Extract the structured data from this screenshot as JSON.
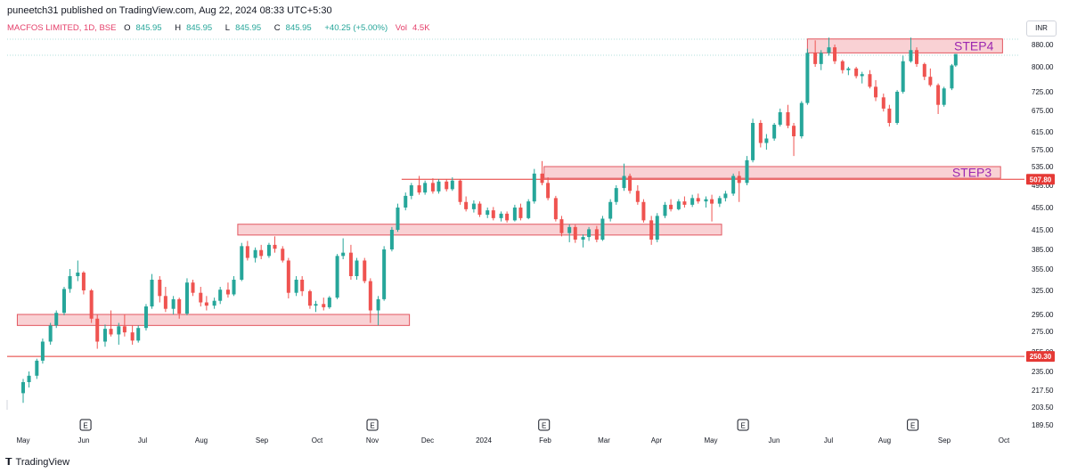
{
  "header": {
    "publisher_line": "puneetch31 published on TradingView.com, Aug 22, 2024 08:33 UTC+5:30",
    "symbol": "MACFOS LIMITED, 1D, BSE",
    "open_label": "O",
    "open": "845.95",
    "high_label": "H",
    "high": "845.95",
    "low_label": "L",
    "low": "845.95",
    "close_label": "C",
    "close": "845.95",
    "change": "+40.25 (+5.00%)",
    "volume_label": "Vol",
    "volume": "4.5K",
    "currency": "INR"
  },
  "footer": {
    "brand": "TradingView"
  },
  "colors": {
    "up": "#26a69a",
    "down": "#ef5350",
    "zone_fill": "#f8c9cd",
    "zone_stroke": "#e2565f",
    "level_line": "#e53935",
    "zone_label": "#9c27b0"
  },
  "chart_data": {
    "type": "candlestick",
    "y_ticks": [
      "880.00",
      "800.00",
      "725.00",
      "675.00",
      "615.00",
      "575.00",
      "535.00",
      "495.00",
      "455.00",
      "415.00",
      "385.00",
      "355.00",
      "325.00",
      "295.00",
      "275.00",
      "255.00",
      "235.00",
      "217.50",
      "203.50",
      "189.50"
    ],
    "x_ticks": [
      "May",
      "Jun",
      "Jul",
      "Aug",
      "Sep",
      "Oct",
      "Nov",
      "Dec",
      "2024",
      "Feb",
      "Mar",
      "Apr",
      "May",
      "Jun",
      "Jul",
      "Aug",
      "Sep",
      "Oct"
    ],
    "price_levels": [
      {
        "value": 507.8,
        "label": "507.80"
      },
      {
        "value": 250.3,
        "label": "250.30"
      }
    ],
    "zones": [
      {
        "label": "",
        "start": "2023-04-28",
        "end": "2023-11-15",
        "low": 282,
        "high": 295
      },
      {
        "label": "",
        "start": "2023-08-19",
        "end": "2024-04-23",
        "low": 407,
        "high": 425
      },
      {
        "label": "STEP3",
        "start": "2024-01-23",
        "end": "2024-09-13",
        "low": 510,
        "high": 535
      },
      {
        "label": "STEP4",
        "start": "2024-06-06",
        "end": "2024-09-14",
        "low": 850,
        "high": 900
      }
    ],
    "earnings_markers": [
      "2023-06-02",
      "2023-10-27",
      "2024-01-23",
      "2024-05-04",
      "2024-07-30"
    ],
    "candles": [
      {
        "date": "2023-05-01",
        "o": 215,
        "h": 228,
        "l": 207,
        "c": 225
      },
      {
        "date": "2023-05-04",
        "o": 225,
        "h": 235,
        "l": 220,
        "c": 231
      },
      {
        "date": "2023-05-08",
        "o": 231,
        "h": 248,
        "l": 228,
        "c": 246
      },
      {
        "date": "2023-05-11",
        "o": 246,
        "h": 268,
        "l": 243,
        "c": 265
      },
      {
        "date": "2023-05-15",
        "o": 265,
        "h": 285,
        "l": 262,
        "c": 282
      },
      {
        "date": "2023-05-18",
        "o": 282,
        "h": 300,
        "l": 279,
        "c": 297
      },
      {
        "date": "2023-05-22",
        "o": 297,
        "h": 330,
        "l": 294,
        "c": 327
      },
      {
        "date": "2023-05-25",
        "o": 327,
        "h": 355,
        "l": 322,
        "c": 345
      },
      {
        "date": "2023-05-29",
        "o": 345,
        "h": 368,
        "l": 338,
        "c": 350
      },
      {
        "date": "2023-06-01",
        "o": 350,
        "h": 352,
        "l": 320,
        "c": 325
      },
      {
        "date": "2023-06-05",
        "o": 325,
        "h": 327,
        "l": 285,
        "c": 290
      },
      {
        "date": "2023-06-08",
        "o": 290,
        "h": 295,
        "l": 258,
        "c": 265
      },
      {
        "date": "2023-06-12",
        "o": 265,
        "h": 283,
        "l": 260,
        "c": 278
      },
      {
        "date": "2023-06-15",
        "o": 278,
        "h": 300,
        "l": 270,
        "c": 272
      },
      {
        "date": "2023-06-19",
        "o": 272,
        "h": 285,
        "l": 262,
        "c": 281
      },
      {
        "date": "2023-06-22",
        "o": 281,
        "h": 295,
        "l": 270,
        "c": 274
      },
      {
        "date": "2023-06-26",
        "o": 274,
        "h": 282,
        "l": 262,
        "c": 266
      },
      {
        "date": "2023-06-29",
        "o": 266,
        "h": 282,
        "l": 264,
        "c": 279
      },
      {
        "date": "2023-07-03",
        "o": 279,
        "h": 308,
        "l": 276,
        "c": 305
      },
      {
        "date": "2023-07-06",
        "o": 305,
        "h": 348,
        "l": 302,
        "c": 340
      },
      {
        "date": "2023-07-10",
        "o": 340,
        "h": 345,
        "l": 310,
        "c": 318
      },
      {
        "date": "2023-07-13",
        "o": 318,
        "h": 330,
        "l": 298,
        "c": 302
      },
      {
        "date": "2023-07-17",
        "o": 302,
        "h": 318,
        "l": 295,
        "c": 314
      },
      {
        "date": "2023-07-20",
        "o": 314,
        "h": 316,
        "l": 290,
        "c": 296
      },
      {
        "date": "2023-07-24",
        "o": 296,
        "h": 342,
        "l": 294,
        "c": 336
      },
      {
        "date": "2023-07-27",
        "o": 336,
        "h": 340,
        "l": 318,
        "c": 322
      },
      {
        "date": "2023-07-31",
        "o": 322,
        "h": 330,
        "l": 305,
        "c": 310
      },
      {
        "date": "2023-08-03",
        "o": 310,
        "h": 318,
        "l": 300,
        "c": 306
      },
      {
        "date": "2023-08-07",
        "o": 306,
        "h": 316,
        "l": 302,
        "c": 312
      },
      {
        "date": "2023-08-10",
        "o": 312,
        "h": 330,
        "l": 308,
        "c": 326
      },
      {
        "date": "2023-08-14",
        "o": 326,
        "h": 336,
        "l": 316,
        "c": 320
      },
      {
        "date": "2023-08-17",
        "o": 320,
        "h": 345,
        "l": 318,
        "c": 340
      },
      {
        "date": "2023-08-21",
        "o": 340,
        "h": 395,
        "l": 338,
        "c": 390
      },
      {
        "date": "2023-08-24",
        "o": 390,
        "h": 398,
        "l": 368,
        "c": 372
      },
      {
        "date": "2023-08-28",
        "o": 372,
        "h": 388,
        "l": 365,
        "c": 384
      },
      {
        "date": "2023-08-31",
        "o": 384,
        "h": 392,
        "l": 370,
        "c": 375
      },
      {
        "date": "2023-09-04",
        "o": 375,
        "h": 395,
        "l": 372,
        "c": 392
      },
      {
        "date": "2023-09-07",
        "o": 392,
        "h": 405,
        "l": 380,
        "c": 386
      },
      {
        "date": "2023-09-11",
        "o": 386,
        "h": 390,
        "l": 365,
        "c": 368
      },
      {
        "date": "2023-09-14",
        "o": 368,
        "h": 372,
        "l": 315,
        "c": 322
      },
      {
        "date": "2023-09-18",
        "o": 322,
        "h": 345,
        "l": 318,
        "c": 340
      },
      {
        "date": "2023-09-21",
        "o": 340,
        "h": 345,
        "l": 318,
        "c": 324
      },
      {
        "date": "2023-09-25",
        "o": 324,
        "h": 326,
        "l": 302,
        "c": 306
      },
      {
        "date": "2023-09-28",
        "o": 306,
        "h": 312,
        "l": 298,
        "c": 308
      },
      {
        "date": "2023-10-02",
        "o": 308,
        "h": 316,
        "l": 300,
        "c": 304
      },
      {
        "date": "2023-10-05",
        "o": 304,
        "h": 318,
        "l": 302,
        "c": 316
      },
      {
        "date": "2023-10-09",
        "o": 316,
        "h": 378,
        "l": 314,
        "c": 375
      },
      {
        "date": "2023-10-12",
        "o": 375,
        "h": 402,
        "l": 370,
        "c": 380
      },
      {
        "date": "2023-10-16",
        "o": 380,
        "h": 392,
        "l": 340,
        "c": 345
      },
      {
        "date": "2023-10-19",
        "o": 345,
        "h": 372,
        "l": 340,
        "c": 368
      },
      {
        "date": "2023-10-23",
        "o": 368,
        "h": 372,
        "l": 335,
        "c": 338
      },
      {
        "date": "2023-10-26",
        "o": 338,
        "h": 342,
        "l": 285,
        "c": 300
      },
      {
        "date": "2023-10-30",
        "o": 300,
        "h": 318,
        "l": 282,
        "c": 314
      },
      {
        "date": "2023-11-02",
        "o": 314,
        "h": 390,
        "l": 312,
        "c": 385
      },
      {
        "date": "2023-11-06",
        "o": 385,
        "h": 420,
        "l": 382,
        "c": 415
      },
      {
        "date": "2023-11-09",
        "o": 415,
        "h": 462,
        "l": 412,
        "c": 455
      },
      {
        "date": "2023-11-13",
        "o": 455,
        "h": 482,
        "l": 450,
        "c": 476
      },
      {
        "date": "2023-11-16",
        "o": 476,
        "h": 500,
        "l": 470,
        "c": 495
      },
      {
        "date": "2023-11-20",
        "o": 495,
        "h": 515,
        "l": 478,
        "c": 482
      },
      {
        "date": "2023-11-23",
        "o": 482,
        "h": 505,
        "l": 478,
        "c": 500
      },
      {
        "date": "2023-11-27",
        "o": 500,
        "h": 510,
        "l": 480,
        "c": 484
      },
      {
        "date": "2023-11-30",
        "o": 484,
        "h": 508,
        "l": 480,
        "c": 503
      },
      {
        "date": "2023-12-04",
        "o": 503,
        "h": 507,
        "l": 484,
        "c": 488
      },
      {
        "date": "2023-12-07",
        "o": 488,
        "h": 512,
        "l": 485,
        "c": 505
      },
      {
        "date": "2023-12-11",
        "o": 505,
        "h": 508,
        "l": 460,
        "c": 465
      },
      {
        "date": "2023-12-14",
        "o": 465,
        "h": 475,
        "l": 448,
        "c": 452
      },
      {
        "date": "2023-12-18",
        "o": 452,
        "h": 468,
        "l": 446,
        "c": 462
      },
      {
        "date": "2023-12-21",
        "o": 462,
        "h": 466,
        "l": 438,
        "c": 442
      },
      {
        "date": "2023-12-25",
        "o": 442,
        "h": 455,
        "l": 436,
        "c": 450
      },
      {
        "date": "2023-12-28",
        "o": 450,
        "h": 456,
        "l": 432,
        "c": 436
      },
      {
        "date": "2024-01-01",
        "o": 436,
        "h": 448,
        "l": 430,
        "c": 444
      },
      {
        "date": "2024-01-04",
        "o": 444,
        "h": 448,
        "l": 428,
        "c": 432
      },
      {
        "date": "2024-01-08",
        "o": 432,
        "h": 460,
        "l": 430,
        "c": 455
      },
      {
        "date": "2024-01-11",
        "o": 455,
        "h": 462,
        "l": 432,
        "c": 436
      },
      {
        "date": "2024-01-15",
        "o": 436,
        "h": 470,
        "l": 434,
        "c": 466
      },
      {
        "date": "2024-01-18",
        "o": 466,
        "h": 530,
        "l": 462,
        "c": 520
      },
      {
        "date": "2024-01-22",
        "o": 520,
        "h": 548,
        "l": 495,
        "c": 500
      },
      {
        "date": "2024-01-25",
        "o": 500,
        "h": 512,
        "l": 468,
        "c": 472
      },
      {
        "date": "2024-01-29",
        "o": 472,
        "h": 476,
        "l": 430,
        "c": 434
      },
      {
        "date": "2024-02-01",
        "o": 434,
        "h": 440,
        "l": 405,
        "c": 410
      },
      {
        "date": "2024-02-05",
        "o": 410,
        "h": 425,
        "l": 396,
        "c": 420
      },
      {
        "date": "2024-02-08",
        "o": 420,
        "h": 424,
        "l": 395,
        "c": 400
      },
      {
        "date": "2024-02-12",
        "o": 400,
        "h": 408,
        "l": 388,
        "c": 404
      },
      {
        "date": "2024-02-15",
        "o": 404,
        "h": 420,
        "l": 398,
        "c": 416
      },
      {
        "date": "2024-02-19",
        "o": 416,
        "h": 422,
        "l": 396,
        "c": 400
      },
      {
        "date": "2024-02-22",
        "o": 400,
        "h": 440,
        "l": 398,
        "c": 435
      },
      {
        "date": "2024-02-26",
        "o": 435,
        "h": 470,
        "l": 430,
        "c": 465
      },
      {
        "date": "2024-02-29",
        "o": 465,
        "h": 495,
        "l": 460,
        "c": 490
      },
      {
        "date": "2024-03-04",
        "o": 490,
        "h": 542,
        "l": 485,
        "c": 515
      },
      {
        "date": "2024-03-07",
        "o": 515,
        "h": 520,
        "l": 480,
        "c": 485
      },
      {
        "date": "2024-03-11",
        "o": 485,
        "h": 495,
        "l": 460,
        "c": 465
      },
      {
        "date": "2024-03-14",
        "o": 465,
        "h": 470,
        "l": 428,
        "c": 432
      },
      {
        "date": "2024-03-18",
        "o": 432,
        "h": 440,
        "l": 392,
        "c": 400
      },
      {
        "date": "2024-03-21",
        "o": 400,
        "h": 445,
        "l": 396,
        "c": 440
      },
      {
        "date": "2024-03-25",
        "o": 440,
        "h": 465,
        "l": 436,
        "c": 460
      },
      {
        "date": "2024-03-28",
        "o": 460,
        "h": 470,
        "l": 448,
        "c": 452
      },
      {
        "date": "2024-04-01",
        "o": 452,
        "h": 470,
        "l": 450,
        "c": 466
      },
      {
        "date": "2024-04-04",
        "o": 466,
        "h": 475,
        "l": 455,
        "c": 460
      },
      {
        "date": "2024-04-08",
        "o": 460,
        "h": 478,
        "l": 456,
        "c": 472
      },
      {
        "date": "2024-04-11",
        "o": 472,
        "h": 480,
        "l": 462,
        "c": 466
      },
      {
        "date": "2024-04-15",
        "o": 466,
        "h": 475,
        "l": 455,
        "c": 470
      },
      {
        "date": "2024-04-18",
        "o": 470,
        "h": 478,
        "l": 430,
        "c": 462
      },
      {
        "date": "2024-04-22",
        "o": 462,
        "h": 476,
        "l": 456,
        "c": 472
      },
      {
        "date": "2024-04-25",
        "o": 472,
        "h": 485,
        "l": 466,
        "c": 480
      },
      {
        "date": "2024-04-29",
        "o": 480,
        "h": 520,
        "l": 476,
        "c": 515
      },
      {
        "date": "2024-05-02",
        "o": 515,
        "h": 525,
        "l": 465,
        "c": 500
      },
      {
        "date": "2024-05-06",
        "o": 500,
        "h": 560,
        "l": 495,
        "c": 550
      },
      {
        "date": "2024-05-09",
        "o": 550,
        "h": 652,
        "l": 545,
        "c": 640
      },
      {
        "date": "2024-05-13",
        "o": 640,
        "h": 648,
        "l": 580,
        "c": 590
      },
      {
        "date": "2024-05-16",
        "o": 590,
        "h": 610,
        "l": 575,
        "c": 600
      },
      {
        "date": "2024-05-20",
        "o": 600,
        "h": 640,
        "l": 595,
        "c": 635
      },
      {
        "date": "2024-05-23",
        "o": 635,
        "h": 680,
        "l": 630,
        "c": 670
      },
      {
        "date": "2024-05-27",
        "o": 670,
        "h": 690,
        "l": 625,
        "c": 632
      },
      {
        "date": "2024-05-30",
        "o": 632,
        "h": 640,
        "l": 560,
        "c": 605
      },
      {
        "date": "2024-06-03",
        "o": 605,
        "h": 700,
        "l": 600,
        "c": 695
      },
      {
        "date": "2024-06-06",
        "o": 695,
        "h": 865,
        "l": 690,
        "c": 850
      },
      {
        "date": "2024-06-10",
        "o": 850,
        "h": 895,
        "l": 800,
        "c": 810
      },
      {
        "date": "2024-06-13",
        "o": 810,
        "h": 860,
        "l": 790,
        "c": 850
      },
      {
        "date": "2024-06-17",
        "o": 850,
        "h": 905,
        "l": 840,
        "c": 870
      },
      {
        "date": "2024-06-20",
        "o": 870,
        "h": 880,
        "l": 810,
        "c": 820
      },
      {
        "date": "2024-06-24",
        "o": 820,
        "h": 825,
        "l": 780,
        "c": 790
      },
      {
        "date": "2024-06-27",
        "o": 790,
        "h": 800,
        "l": 775,
        "c": 795
      },
      {
        "date": "2024-07-01",
        "o": 795,
        "h": 800,
        "l": 765,
        "c": 772
      },
      {
        "date": "2024-07-04",
        "o": 772,
        "h": 785,
        "l": 750,
        "c": 778
      },
      {
        "date": "2024-07-08",
        "o": 778,
        "h": 790,
        "l": 735,
        "c": 740
      },
      {
        "date": "2024-07-11",
        "o": 740,
        "h": 760,
        "l": 700,
        "c": 710
      },
      {
        "date": "2024-07-15",
        "o": 710,
        "h": 720,
        "l": 672,
        "c": 680
      },
      {
        "date": "2024-07-18",
        "o": 680,
        "h": 690,
        "l": 630,
        "c": 640
      },
      {
        "date": "2024-07-22",
        "o": 640,
        "h": 730,
        "l": 635,
        "c": 725
      },
      {
        "date": "2024-07-25",
        "o": 725,
        "h": 840,
        "l": 720,
        "c": 820
      },
      {
        "date": "2024-07-29",
        "o": 820,
        "h": 905,
        "l": 815,
        "c": 860
      },
      {
        "date": "2024-08-01",
        "o": 860,
        "h": 870,
        "l": 800,
        "c": 810
      },
      {
        "date": "2024-08-05",
        "o": 810,
        "h": 815,
        "l": 760,
        "c": 770
      },
      {
        "date": "2024-08-08",
        "o": 770,
        "h": 795,
        "l": 740,
        "c": 745
      },
      {
        "date": "2024-08-12",
        "o": 745,
        "h": 750,
        "l": 665,
        "c": 690
      },
      {
        "date": "2024-08-15",
        "o": 690,
        "h": 740,
        "l": 685,
        "c": 735
      },
      {
        "date": "2024-08-19",
        "o": 735,
        "h": 810,
        "l": 730,
        "c": 805
      },
      {
        "date": "2024-08-21",
        "o": 805,
        "h": 846,
        "l": 800,
        "c": 845.95
      }
    ]
  }
}
